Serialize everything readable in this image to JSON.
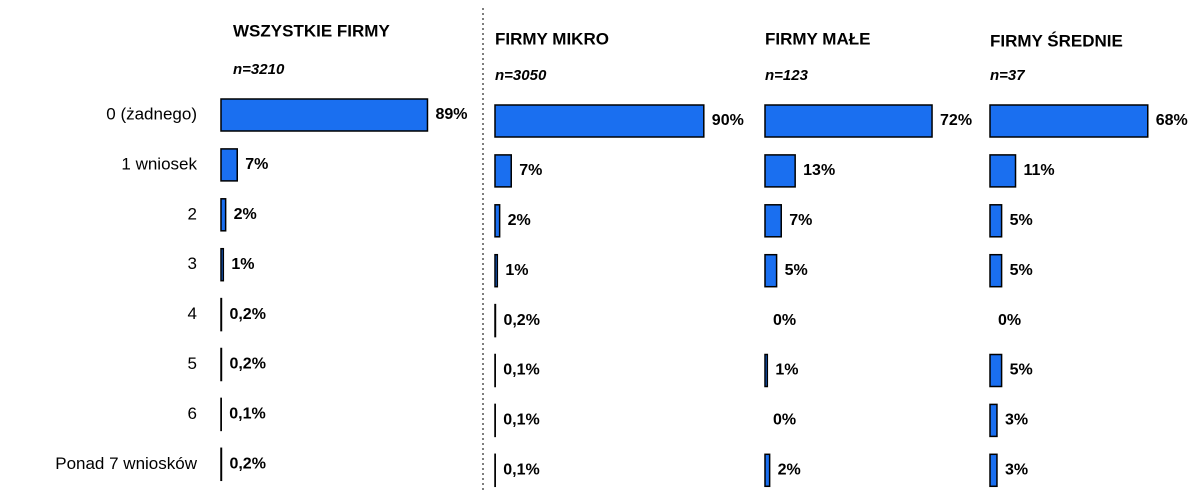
{
  "chart_data": [
    {
      "type": "bar",
      "title": "WSZYSTKIE FIRMY",
      "subtitle": "n=3210",
      "color": "#1a6ff0",
      "categories": [
        "0 (żadnego)",
        "1 wniosek",
        "2",
        "3",
        "4",
        "5",
        "6",
        "Ponad 7 wniosków"
      ],
      "values": [
        89,
        7,
        2,
        1,
        0.2,
        0.2,
        0.1,
        0.2
      ],
      "value_labels": [
        "89%",
        "7%",
        "2%",
        "1%",
        "0,2%",
        "0,2%",
        "0,1%",
        "0,2%"
      ]
    },
    {
      "type": "bar",
      "title": "FIRMY MIKRO",
      "subtitle": "n=3050",
      "color": "#1a6ff0",
      "values": [
        90,
        7,
        2,
        1,
        0.2,
        0.1,
        0.1,
        0.1
      ],
      "value_labels": [
        "90%",
        "7%",
        "2%",
        "1%",
        "0,2%",
        "0,1%",
        "0,1%",
        "0,1%"
      ]
    },
    {
      "type": "bar",
      "title": "FIRMY MAŁE",
      "subtitle": "n=123",
      "color": "#1a6ff0",
      "values": [
        72,
        13,
        7,
        5,
        0,
        1,
        0,
        2
      ],
      "value_labels": [
        "72%",
        "13%",
        "7%",
        "5%",
        "0%",
        "1%",
        "0%",
        "2%"
      ]
    },
    {
      "type": "bar",
      "title": "FIRMY ŚREDNIE",
      "subtitle": "n=37",
      "color": "#1a6ff0",
      "values": [
        68,
        11,
        5,
        5,
        0,
        5,
        3,
        3
      ],
      "value_labels": [
        "68%",
        "11%",
        "5%",
        "5%",
        "0%",
        "5%",
        "3%",
        "3%"
      ]
    }
  ]
}
